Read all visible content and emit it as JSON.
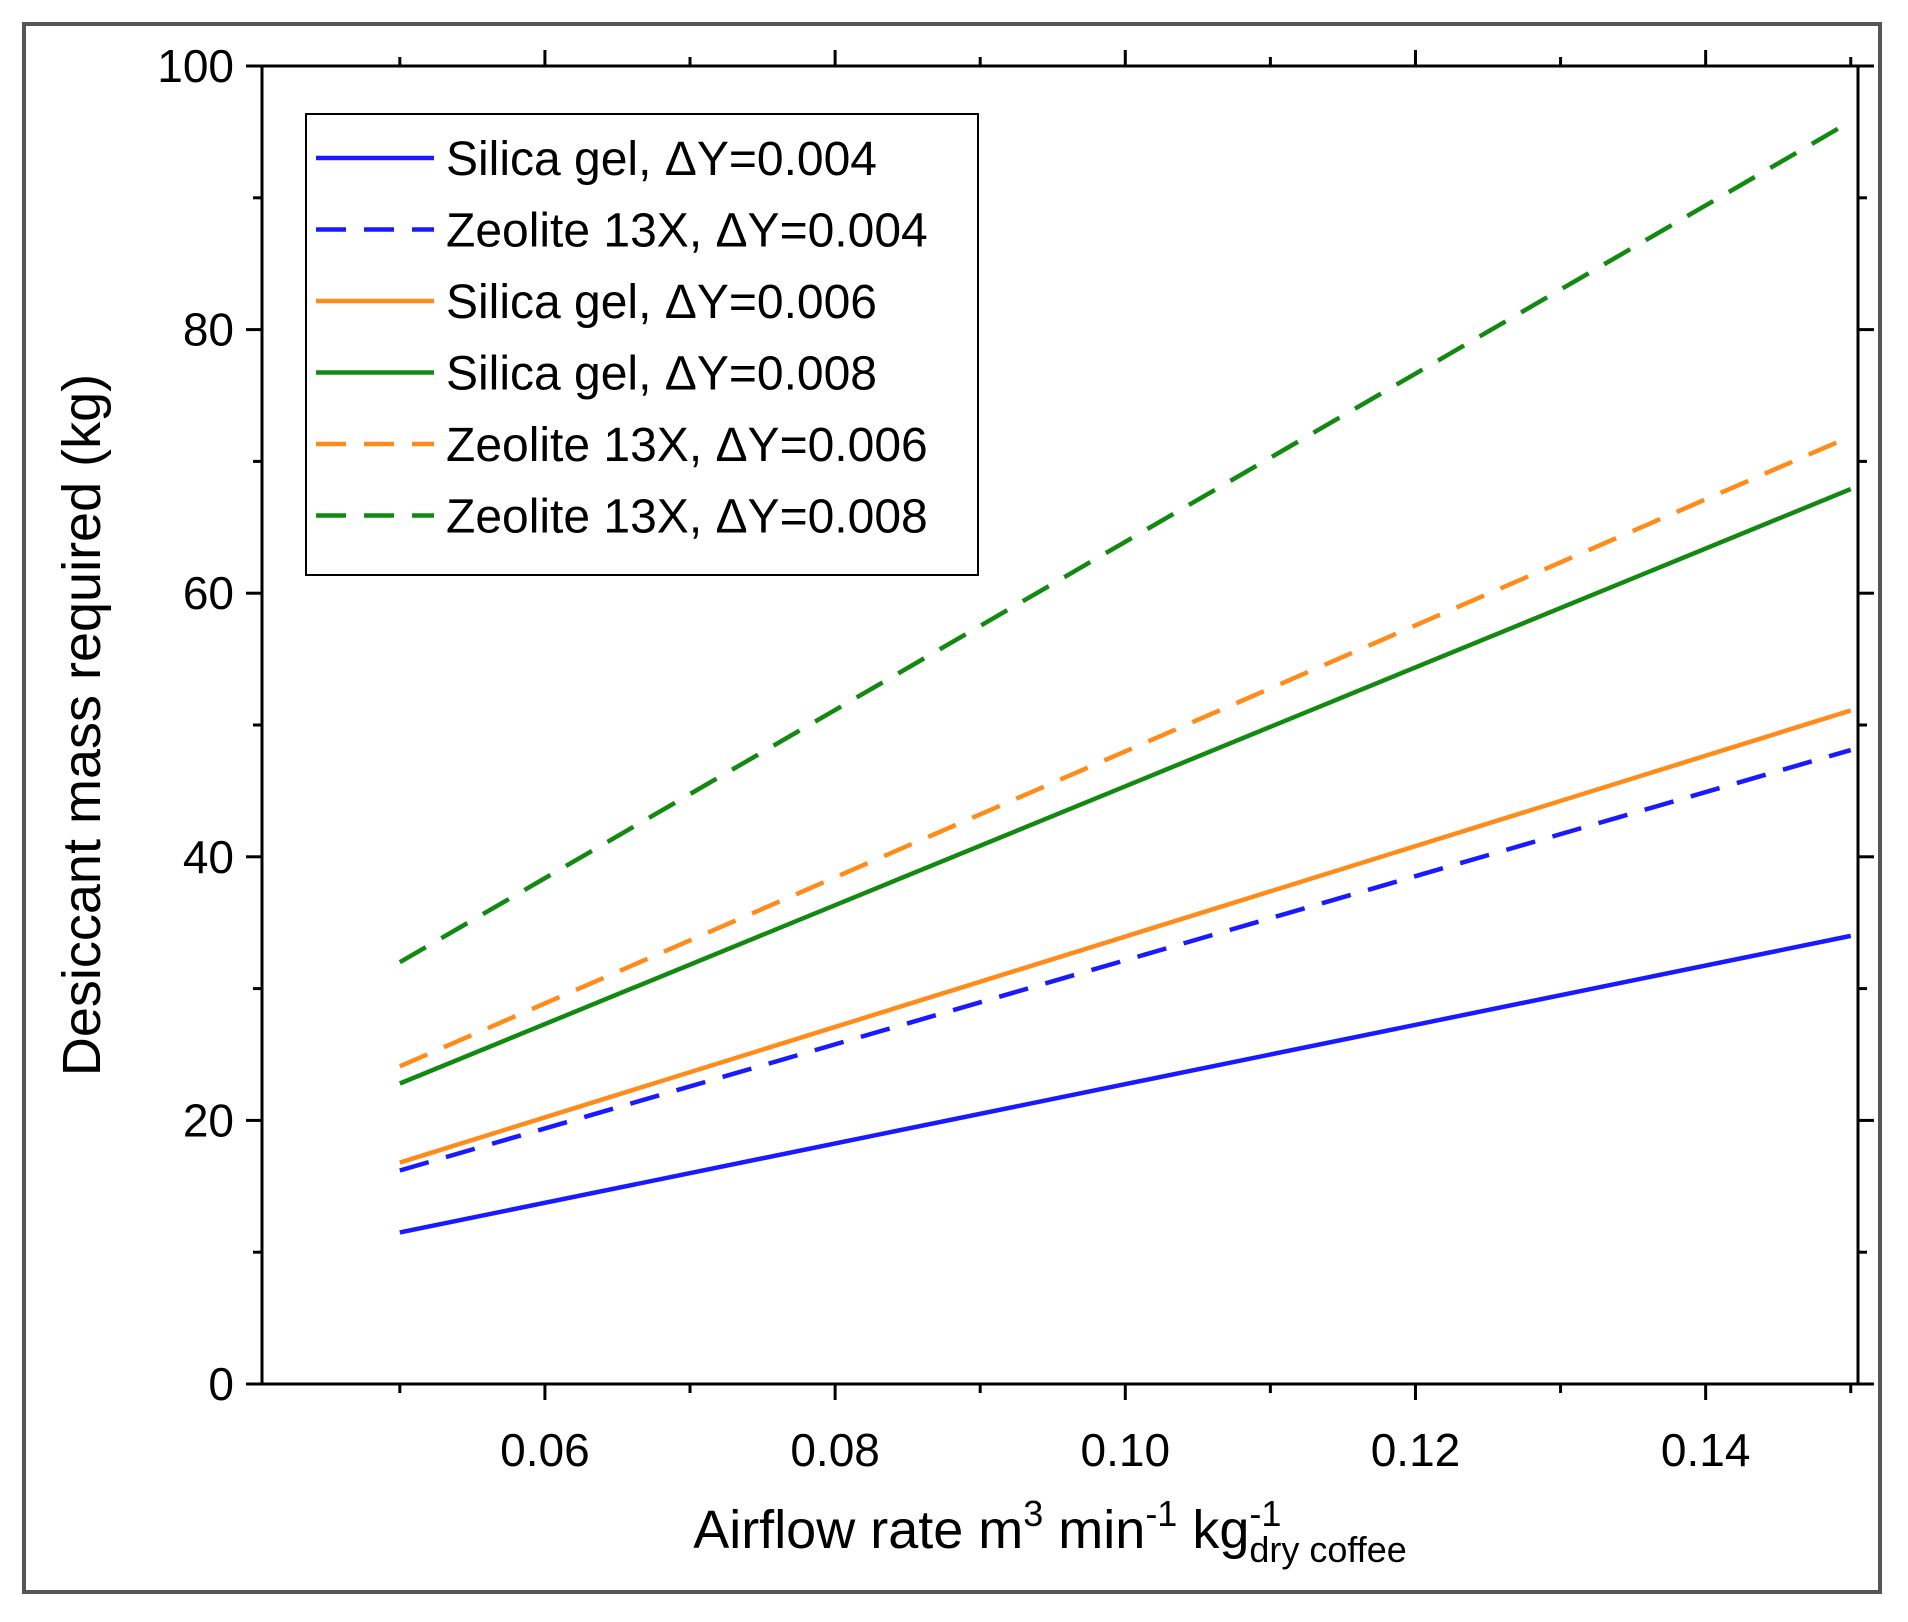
{
  "chart_data": {
    "type": "line",
    "title": "",
    "xlabel": {
      "main": "Airflow rate m",
      "sup1": "3",
      "mid1": " min",
      "sup2": "-1",
      "mid2": " kg",
      "sup3": "-1",
      "sub": "dry coffee"
    },
    "ylabel": "Desiccant mass required (kg)",
    "xlim": [
      0.0405,
      0.1505
    ],
    "ylim": [
      0,
      100
    ],
    "x_ticks": [
      0.06,
      0.08,
      0.1,
      0.12,
      0.14
    ],
    "x_tick_labels": [
      "0.06",
      "0.08",
      "0.10",
      "0.12",
      "0.14"
    ],
    "y_ticks": [
      0,
      20,
      40,
      60,
      80,
      100
    ],
    "y_tick_labels": [
      "0",
      "20",
      "40",
      "60",
      "80",
      "100"
    ],
    "y_minor_ticks": [
      10,
      30,
      50,
      70,
      90
    ],
    "x_minor_ticks": [
      0.05,
      0.07,
      0.09,
      0.11,
      0.13,
      0.15
    ],
    "legend_position": "top-left",
    "series": [
      {
        "name": "Silica gel, ΔY=0.004",
        "color": "#1a1aff",
        "dash": "solid",
        "x": [
          0.05,
          0.15
        ],
        "values": [
          11.5,
          34
        ]
      },
      {
        "name": "Zeolite 13X, ΔY=0.004",
        "color": "#1a1aff",
        "dash": "dashed",
        "x": [
          0.05,
          0.15
        ],
        "values": [
          16.2,
          48.1
        ]
      },
      {
        "name": "Silica gel, ΔY=0.006",
        "color": "#ff8c1a",
        "dash": "solid",
        "x": [
          0.05,
          0.15
        ],
        "values": [
          16.8,
          51.1
        ]
      },
      {
        "name": "Silica gel, ΔY=0.008",
        "color": "#128a12",
        "dash": "solid",
        "x": [
          0.05,
          0.15
        ],
        "values": [
          22.8,
          67.9
        ]
      },
      {
        "name": "Zeolite 13X, ΔY=0.006",
        "color": "#ff8c1a",
        "dash": "dashed",
        "x": [
          0.05,
          0.15
        ],
        "values": [
          24.1,
          71.9
        ]
      },
      {
        "name": "Zeolite 13X, ΔY=0.008",
        "color": "#128a12",
        "dash": "dashed",
        "x": [
          0.05,
          0.15
        ],
        "values": [
          32.0,
          95.8
        ]
      }
    ]
  }
}
